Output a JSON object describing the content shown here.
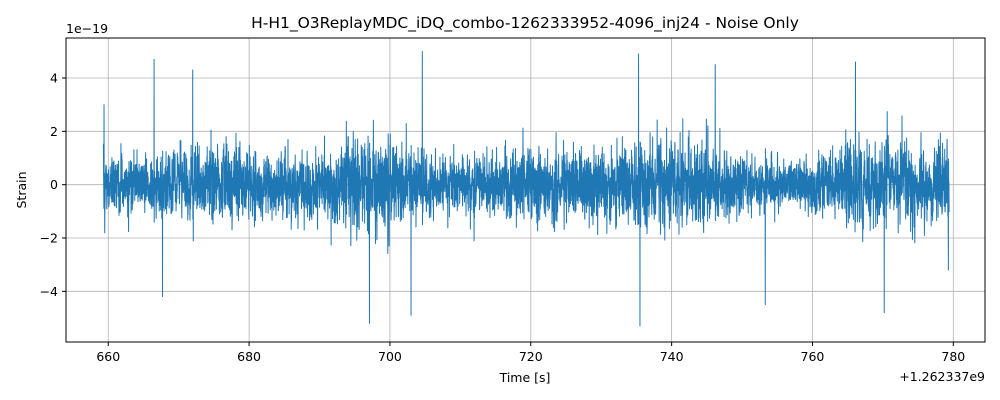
{
  "chart_data": {
    "type": "line",
    "title": "H-H1_O3ReplayMDC_iDQ_combo-1262333952-4096_inj24 - Noise Only",
    "xlabel": "Time [s]",
    "ylabel": "Strain",
    "x_offset_label": "+1.262337e9",
    "y_scale_label": "1e−19",
    "xlim": [
      654,
      784.5
    ],
    "ylim": [
      -5.9,
      5.5
    ],
    "xticks": [
      660,
      680,
      700,
      720,
      740,
      760,
      780
    ],
    "xtick_labels": [
      "660",
      "680",
      "700",
      "720",
      "740",
      "760",
      "780"
    ],
    "yticks": [
      -4,
      -2,
      0,
      2,
      4
    ],
    "ytick_labels": [
      "−4",
      "−2",
      "0",
      "2",
      "4"
    ],
    "grid": true,
    "series_color": "#1f77b4",
    "series": [
      {
        "x_range": [
          659.3,
          779.4
        ],
        "typical_amplitude": 1.0,
        "envelope_peaks": [
          {
            "x": 659.4,
            "y": 3.0
          },
          {
            "x": 666.5,
            "y": 4.7
          },
          {
            "x": 667.7,
            "y": -4.2
          },
          {
            "x": 672.0,
            "y": 4.3
          },
          {
            "x": 697.1,
            "y": -5.2
          },
          {
            "x": 703.0,
            "y": -4.9
          },
          {
            "x": 704.6,
            "y": 5.0
          },
          {
            "x": 735.3,
            "y": 4.9
          },
          {
            "x": 735.5,
            "y": -5.3
          },
          {
            "x": 746.2,
            "y": 4.5
          },
          {
            "x": 753.3,
            "y": -4.5
          },
          {
            "x": 766.1,
            "y": 4.6
          },
          {
            "x": 770.2,
            "y": -4.8
          },
          {
            "x": 779.3,
            "y": -3.2
          }
        ]
      }
    ]
  }
}
